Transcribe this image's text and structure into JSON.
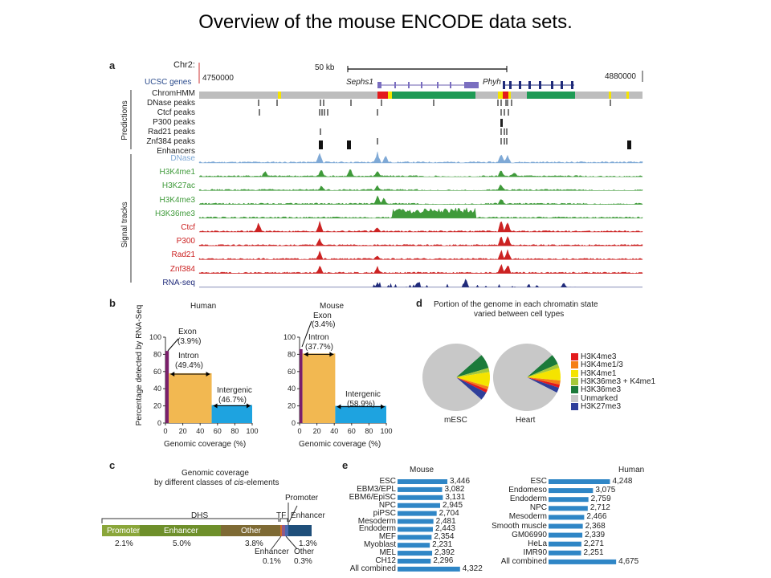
{
  "title": "Overview of the mouse ENCODE data sets.",
  "panel_labels": [
    "a",
    "b",
    "c",
    "d",
    "e"
  ],
  "panel_a": {
    "chrom": "Chr2:",
    "scale": "50 kb",
    "start": "4750000",
    "end": "4880000",
    "gene_track_label": "UCSC genes",
    "genes": [
      "Sephs1",
      "Phyh"
    ],
    "group_predictions": "Predictions",
    "group_signal": "Signal tracks",
    "prediction_tracks": [
      "ChromHMM",
      "DNase peaks",
      "Ctcf peaks",
      "P300 peaks",
      "Rad21 peaks",
      "Znf384 peaks",
      "Enhancers"
    ],
    "signal_tracks": [
      {
        "label": "DNase",
        "color": "#7fa9d6"
      },
      {
        "label": "H3K4me1",
        "color": "#3f9a3a"
      },
      {
        "label": "H3K27ac",
        "color": "#3f9a3a"
      },
      {
        "label": "H3K4me3",
        "color": "#3f9a3a"
      },
      {
        "label": "H3K36me3",
        "color": "#3f9a3a"
      },
      {
        "label": "Ctcf",
        "color": "#cc2222"
      },
      {
        "label": "P300",
        "color": "#cc2222"
      },
      {
        "label": "Rad21",
        "color": "#cc2222"
      },
      {
        "label": "Znf384",
        "color": "#cc2222"
      },
      {
        "label": "RNA-seq",
        "color": "#1f2a7a"
      }
    ]
  },
  "panel_b": {
    "ylabel": "Percentage detected by RNA-Seq",
    "xlabel": "Genomic coverage (%)",
    "x_ticks": [
      "0",
      "20",
      "40",
      "60",
      "80",
      "100"
    ],
    "y_ticks": [
      "0",
      "20",
      "40",
      "60",
      "80",
      "100"
    ],
    "human": {
      "title": "Human",
      "exon_label": "Exon",
      "exon_pct": "(3.9%)",
      "intron_label": "Intron",
      "intron_pct": "(49.4%)",
      "intergenic_label": "Intergenic",
      "intergenic_pct": "(46.7%)"
    },
    "mouse": {
      "title": "Mouse",
      "exon_label": "Exon",
      "exon_pct": "(3.4%)",
      "intron_label": "Intron",
      "intron_pct": "(37.7%)",
      "intergenic_label": "Intergenic",
      "intergenic_pct": "(58.9%)"
    }
  },
  "panel_c": {
    "title_line1": "Genomic coverage",
    "title_line2_prefix": "by different classes of ",
    "title_line2_italic": "cis",
    "title_line2_suffix": "-elements",
    "labels": {
      "dhs": "DHS",
      "tf": "TF",
      "promoter_top": "Promoter",
      "enhancer_right": "Enhancer",
      "promoter": "Promoter",
      "enhancer": "Enhancer",
      "other": "Other",
      "tf_enhancer": "Enhancer",
      "tf_other": "Other"
    },
    "values": {
      "promoter": "2.1%",
      "enhancer": "5.0%",
      "other": "3.8%",
      "right": "1.3%",
      "tf_enhancer": "0.1%",
      "tf_other": "0.3%"
    }
  },
  "panel_d": {
    "title_line1": "Portion of the genome in each chromatin state",
    "title_line2": "varied between cell types",
    "pies": [
      "mESC",
      "Heart"
    ],
    "legend": [
      {
        "label": "H3K4me3",
        "color": "#e31a1c"
      },
      {
        "label": "H3K4me1/3",
        "color": "#f57f17"
      },
      {
        "label": "H3K4me1",
        "color": "#f5e400"
      },
      {
        "label": "H3K36me3 + K4me1",
        "color": "#a6c93a"
      },
      {
        "label": "H3K36me3",
        "color": "#1b7a3a"
      },
      {
        "label": "Unmarked",
        "color": "#c8c8c8"
      },
      {
        "label": "H3K27me3",
        "color": "#2f3f9a"
      }
    ]
  },
  "chart_data": [
    {
      "type": "bar",
      "title": "Human",
      "xlabel": "Genomic coverage (%)",
      "ylabel": "Percentage detected by RNA-Seq",
      "categories": [
        "Exon",
        "Intron",
        "Intergenic"
      ],
      "coverage": [
        3.9,
        49.4,
        46.7
      ],
      "values": [
        84,
        58,
        21
      ],
      "xlim": [
        0,
        100
      ],
      "ylim": [
        0,
        100
      ],
      "colors": [
        "#7a1f6b",
        "#f2b851",
        "#1ea3e0"
      ]
    },
    {
      "type": "bar",
      "title": "Mouse",
      "xlabel": "Genomic coverage (%)",
      "ylabel": "Percentage detected by RNA-Seq",
      "categories": [
        "Exon",
        "Intron",
        "Intergenic"
      ],
      "coverage": [
        3.4,
        37.7,
        58.9
      ],
      "values": [
        86,
        81,
        20
      ],
      "xlim": [
        0,
        100
      ],
      "ylim": [
        0,
        100
      ],
      "colors": [
        "#7a1f6b",
        "#f2b851",
        "#1ea3e0"
      ]
    },
    {
      "type": "bar",
      "title": "Genomic coverage by different classes of cis-elements",
      "categories": [
        "Promoter",
        "Enhancer",
        "Other",
        "TF Enhancer",
        "TF Other",
        "Enhancer"
      ],
      "values": [
        2.1,
        5.0,
        3.8,
        0.1,
        0.3,
        1.3
      ],
      "colors": [
        "#8aa63a",
        "#6e8f2b",
        "#7e6a34",
        "#d36a2a",
        "#4a6ab0",
        "#1f4f7a"
      ]
    },
    {
      "type": "pie",
      "title": "mESC",
      "labels": [
        "H3K4me3",
        "H3K4me1/3",
        "H3K4me1",
        "H3K36me3 + K4me1",
        "H3K36me3",
        "Unmarked",
        "H3K27me3"
      ],
      "values": [
        1.5,
        1.5,
        7,
        2,
        7,
        77,
        4
      ]
    },
    {
      "type": "pie",
      "title": "Heart",
      "labels": [
        "H3K4me3",
        "H3K4me1/3",
        "H3K4me1",
        "H3K36me3 + K4me1",
        "H3K36me3",
        "Unmarked",
        "H3K27me3"
      ],
      "values": [
        1.5,
        2,
        6,
        2,
        5,
        81,
        2.5
      ]
    },
    {
      "type": "bar",
      "title": "Mouse",
      "categories": [
        "ESC",
        "EBM3/EPL",
        "EBM6/EpiSC",
        "NPC",
        "piPSC",
        "Mesoderm",
        "Endoderm",
        "MEF",
        "Myoblast",
        "MEL",
        "CH12",
        "All combined"
      ],
      "values": [
        3446,
        3082,
        3131,
        2945,
        2704,
        2481,
        2443,
        2354,
        2231,
        2392,
        2296,
        4322
      ],
      "labels": [
        "3,446",
        "3,082",
        "3,131",
        "2,945",
        "2,704",
        "2,481",
        "2,443",
        "2,354",
        "2,231",
        "2,392",
        "2,296",
        "4,322"
      ]
    },
    {
      "type": "bar",
      "title": "Human",
      "categories": [
        "ESC",
        "Endomeso",
        "Endoderm",
        "NPC",
        "Mesoderm",
        "Smooth muscle",
        "GM06990",
        "HeLa",
        "IMR90",
        "All combined"
      ],
      "values": [
        4248,
        3075,
        2759,
        2712,
        2466,
        2368,
        2339,
        2271,
        2251,
        4675
      ],
      "labels": [
        "4,248",
        "3,075",
        "2,759",
        "2,712",
        "2,466",
        "2,368",
        "2,339",
        "2,271",
        "2,251",
        "4,675"
      ]
    }
  ]
}
